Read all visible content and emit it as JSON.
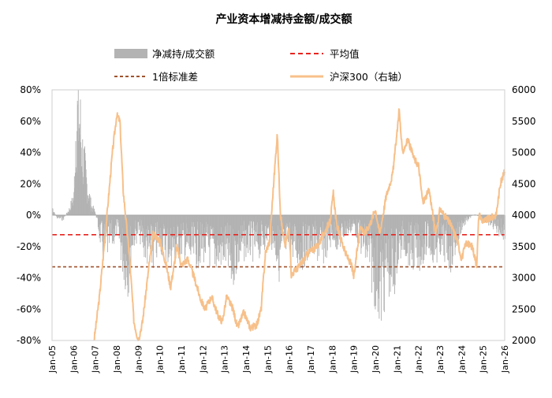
{
  "chart_data": {
    "type": "bar+line",
    "title": "产业资本增减持金额/成交额",
    "legend": [
      {
        "key": "net",
        "label": "净减持/成交额",
        "color": "#b3b3b3",
        "style": "area"
      },
      {
        "key": "mean",
        "label": "平均值",
        "color": "#e8231e",
        "style": "dashed"
      },
      {
        "key": "std",
        "label": "1倍标准差",
        "color": "#a0522d",
        "style": "dashed"
      },
      {
        "key": "hs300",
        "label": "沪深300（右轴）",
        "color": "#f7c08a",
        "style": "line"
      }
    ],
    "left_axis": {
      "min": -0.8,
      "max": 0.8,
      "ticks": [
        "80%",
        "60%",
        "40%",
        "20%",
        "0%",
        "-20%",
        "-40%",
        "-60%",
        "-80%"
      ]
    },
    "right_axis": {
      "min": 2000,
      "max": 6000,
      "ticks": [
        "6000",
        "5500",
        "5000",
        "4500",
        "4000",
        "3500",
        "3000",
        "2500",
        "2000"
      ]
    },
    "x_labels": [
      "Jan-05",
      "Jan-06",
      "Jan-07",
      "Jan-08",
      "Jan-09",
      "Jan-10",
      "Jan-11",
      "Jan-12",
      "Jan-13",
      "Jan-14",
      "Jan-15",
      "Jan-16",
      "Jan-17",
      "Jan-18",
      "Jan-19",
      "Jan-20",
      "Jan-21",
      "Jan-22",
      "Jan-23",
      "Jan-24",
      "Jan-25",
      "Jan-26"
    ],
    "x_range": [
      2005.0,
      2026.0
    ],
    "mean_line": -0.125,
    "std_line": -0.33,
    "net_reduction_keypoints": [
      [
        2005.0,
        0.06
      ],
      [
        2005.2,
        -0.02
      ],
      [
        2005.5,
        -0.03
      ],
      [
        2005.8,
        0.05
      ],
      [
        2006.0,
        0.15
      ],
      [
        2006.1,
        0.8
      ],
      [
        2006.25,
        0.8
      ],
      [
        2006.4,
        0.5
      ],
      [
        2006.6,
        0.25
      ],
      [
        2006.8,
        0.08
      ],
      [
        2007.0,
        0.02
      ],
      [
        2007.2,
        -0.15
      ],
      [
        2007.4,
        -0.28
      ],
      [
        2007.6,
        -0.22
      ],
      [
        2007.8,
        -0.18
      ],
      [
        2008.0,
        -0.1
      ],
      [
        2008.3,
        -0.35
      ],
      [
        2008.5,
        -0.45
      ],
      [
        2008.7,
        -0.2
      ],
      [
        2009.0,
        -0.12
      ],
      [
        2009.3,
        -0.25
      ],
      [
        2009.6,
        -0.32
      ],
      [
        2010.0,
        -0.2
      ],
      [
        2010.5,
        -0.28
      ],
      [
        2011.0,
        -0.22
      ],
      [
        2011.5,
        -0.3
      ],
      [
        2012.0,
        -0.25
      ],
      [
        2012.5,
        -0.3
      ],
      [
        2013.0,
        -0.28
      ],
      [
        2013.3,
        -0.4
      ],
      [
        2013.6,
        -0.3
      ],
      [
        2014.0,
        -0.22
      ],
      [
        2014.5,
        -0.25
      ],
      [
        2015.0,
        -0.15
      ],
      [
        2015.3,
        -0.2
      ],
      [
        2015.5,
        -0.35
      ],
      [
        2015.8,
        -0.25
      ],
      [
        2016.0,
        -0.2
      ],
      [
        2016.5,
        -0.3
      ],
      [
        2017.0,
        -0.22
      ],
      [
        2017.5,
        -0.28
      ],
      [
        2018.0,
        -0.15
      ],
      [
        2018.3,
        -0.2
      ],
      [
        2018.6,
        -0.12
      ],
      [
        2019.0,
        -0.08
      ],
      [
        2019.3,
        -0.2
      ],
      [
        2019.6,
        -0.3
      ],
      [
        2019.9,
        -0.45
      ],
      [
        2020.1,
        -0.55
      ],
      [
        2020.3,
        -0.62
      ],
      [
        2020.5,
        -0.4
      ],
      [
        2020.8,
        -0.5
      ],
      [
        2021.0,
        -0.3
      ],
      [
        2021.3,
        -0.2
      ],
      [
        2021.6,
        -0.28
      ],
      [
        2022.0,
        -0.3
      ],
      [
        2022.4,
        -0.2
      ],
      [
        2022.8,
        -0.28
      ],
      [
        2023.0,
        -0.22
      ],
      [
        2023.5,
        -0.3
      ],
      [
        2023.8,
        -0.18
      ],
      [
        2024.0,
        -0.08
      ],
      [
        2024.3,
        -0.03
      ],
      [
        2024.6,
        0.01
      ],
      [
        2025.0,
        -0.04
      ],
      [
        2025.5,
        -0.08
      ],
      [
        2026.0,
        -0.15
      ]
    ],
    "hs300_keypoints": [
      [
        2006.95,
        2000
      ],
      [
        2007.2,
        2700
      ],
      [
        2007.5,
        3800
      ],
      [
        2007.8,
        5000
      ],
      [
        2008.0,
        5600
      ],
      [
        2008.15,
        5500
      ],
      [
        2008.3,
        4400
      ],
      [
        2008.6,
        3300
      ],
      [
        2008.8,
        2300
      ],
      [
        2009.0,
        2000
      ],
      [
        2009.2,
        2300
      ],
      [
        2009.5,
        3200
      ],
      [
        2009.7,
        3700
      ],
      [
        2010.0,
        3600
      ],
      [
        2010.3,
        3200
      ],
      [
        2010.5,
        2850
      ],
      [
        2010.8,
        3500
      ],
      [
        2011.0,
        3200
      ],
      [
        2011.3,
        3300
      ],
      [
        2011.6,
        3000
      ],
      [
        2011.9,
        2650
      ],
      [
        2012.1,
        2500
      ],
      [
        2012.4,
        2700
      ],
      [
        2012.7,
        2400
      ],
      [
        2012.9,
        2300
      ],
      [
        2013.1,
        2700
      ],
      [
        2013.4,
        2500
      ],
      [
        2013.6,
        2200
      ],
      [
        2013.9,
        2450
      ],
      [
        2014.2,
        2200
      ],
      [
        2014.5,
        2250
      ],
      [
        2014.7,
        2500
      ],
      [
        2014.9,
        3400
      ],
      [
        2015.1,
        3600
      ],
      [
        2015.3,
        4600
      ],
      [
        2015.45,
        5300
      ],
      [
        2015.6,
        4000
      ],
      [
        2015.8,
        3500
      ],
      [
        2016.0,
        3800
      ],
      [
        2016.1,
        3050
      ],
      [
        2016.5,
        3200
      ],
      [
        2016.9,
        3400
      ],
      [
        2017.3,
        3500
      ],
      [
        2017.6,
        3700
      ],
      [
        2017.9,
        3900
      ],
      [
        2018.05,
        4350
      ],
      [
        2018.2,
        3850
      ],
      [
        2018.6,
        3400
      ],
      [
        2018.9,
        3200
      ],
      [
        2019.0,
        3000
      ],
      [
        2019.3,
        3850
      ],
      [
        2019.5,
        3700
      ],
      [
        2019.8,
        3900
      ],
      [
        2020.0,
        4100
      ],
      [
        2020.2,
        3700
      ],
      [
        2020.5,
        4300
      ],
      [
        2020.8,
        4650
      ],
      [
        2021.0,
        5300
      ],
      [
        2021.1,
        5700
      ],
      [
        2021.25,
        5000
      ],
      [
        2021.5,
        5200
      ],
      [
        2021.8,
        4900
      ],
      [
        2022.0,
        4800
      ],
      [
        2022.2,
        4200
      ],
      [
        2022.5,
        4400
      ],
      [
        2022.8,
        3700
      ],
      [
        2023.0,
        4100
      ],
      [
        2023.2,
        4000
      ],
      [
        2023.5,
        3850
      ],
      [
        2023.8,
        3600
      ],
      [
        2024.0,
        3300
      ],
      [
        2024.2,
        3550
      ],
      [
        2024.5,
        3500
      ],
      [
        2024.7,
        3200
      ],
      [
        2024.8,
        4000
      ],
      [
        2025.0,
        3900
      ],
      [
        2025.3,
        3950
      ],
      [
        2025.6,
        4000
      ],
      [
        2025.8,
        4500
      ],
      [
        2026.0,
        4700
      ]
    ]
  }
}
